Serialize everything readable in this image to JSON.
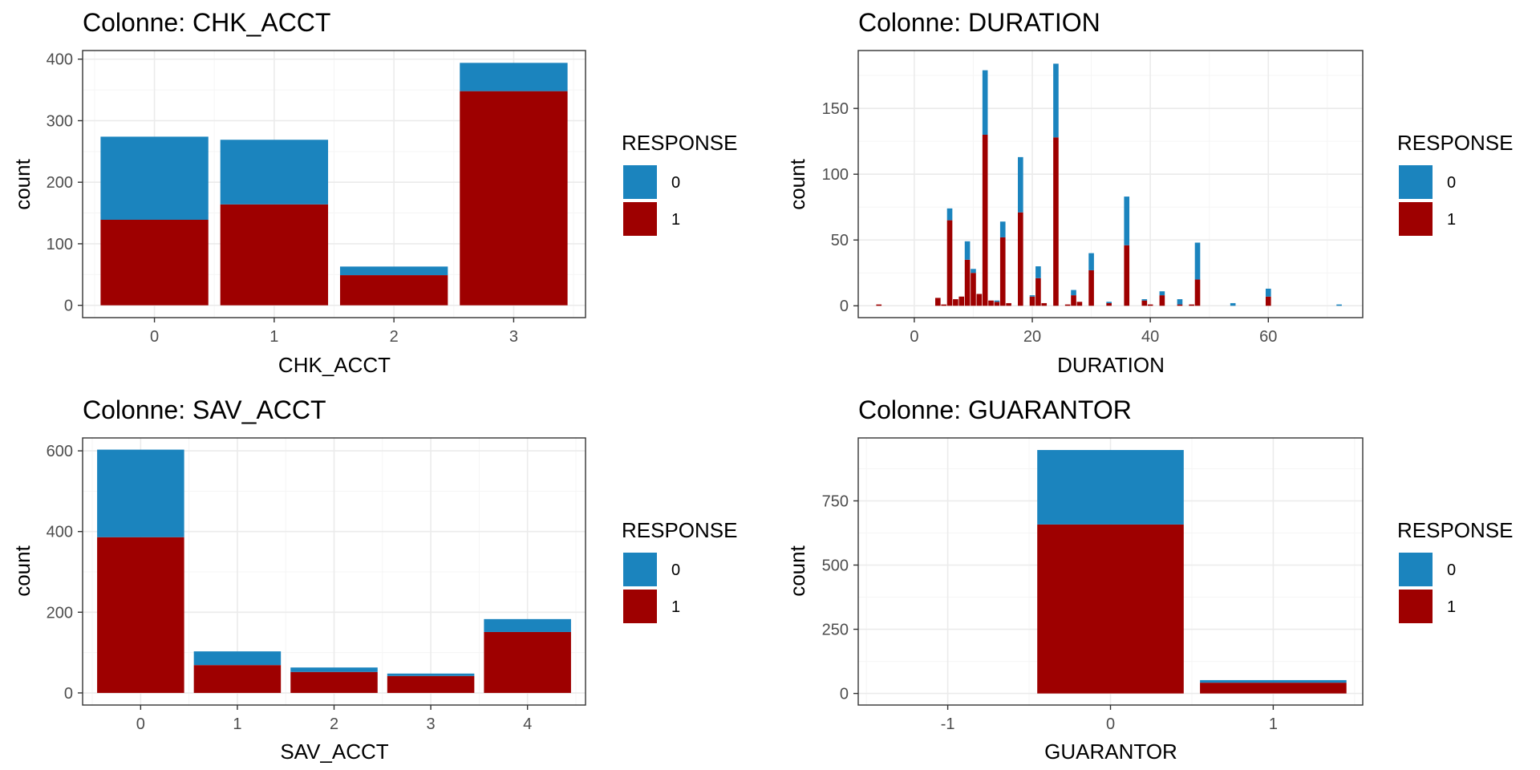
{
  "fill_colors": {
    "0": "#1b84be",
    "1": "#9e0000"
  },
  "legend": {
    "title": "RESPONSE",
    "labels": [
      "0",
      "1"
    ]
  },
  "chart_data": [
    {
      "type": "bar",
      "stacked": true,
      "title": "Colonne:  CHK_ACCT",
      "xlabel": "CHK_ACCT",
      "ylabel": "count",
      "categories": [
        0,
        1,
        2,
        3
      ],
      "x_ticks": [
        0,
        1,
        2,
        3
      ],
      "y_ticks": [
        0,
        100,
        200,
        300,
        400
      ],
      "xlim": [
        -0.6,
        3.6
      ],
      "ylim": [
        -20,
        414
      ],
      "bar_width": 0.9,
      "series": [
        {
          "name": "0",
          "values": [
            135,
            105,
            14,
            46
          ]
        },
        {
          "name": "1",
          "values": [
            139,
            164,
            49,
            348
          ]
        }
      ]
    },
    {
      "type": "bar",
      "stacked": true,
      "title": "Colonne:  DURATION",
      "xlabel": "DURATION",
      "ylabel": "count",
      "categories": [
        -6,
        4,
        5,
        6,
        7,
        8,
        9,
        10,
        11,
        12,
        13,
        14,
        15,
        16,
        18,
        20,
        21,
        22,
        24,
        26,
        27,
        28,
        30,
        33,
        36,
        39,
        40,
        42,
        45,
        47,
        48,
        54,
        60,
        72
      ],
      "x_ticks": [
        0,
        20,
        40,
        60
      ],
      "y_ticks": [
        0,
        50,
        100,
        150
      ],
      "xlim": [
        -9.5,
        76
      ],
      "ylim": [
        -9,
        194
      ],
      "bar_width": 0.9,
      "series": [
        {
          "name": "0",
          "values": [
            0,
            0,
            0,
            9,
            0,
            0,
            14,
            3,
            0,
            49,
            0,
            1,
            12,
            0,
            42,
            1,
            9,
            0,
            56,
            0,
            4,
            0,
            13,
            1,
            37,
            1,
            0,
            3,
            4,
            0,
            28,
            2,
            6,
            1
          ]
        },
        {
          "name": "1",
          "values": [
            1,
            6,
            1,
            65,
            5,
            7,
            35,
            25,
            9,
            130,
            4,
            3,
            52,
            2,
            71,
            7,
            21,
            2,
            128,
            1,
            8,
            3,
            27,
            2,
            46,
            4,
            1,
            8,
            1,
            1,
            20,
            0,
            7,
            0
          ]
        }
      ]
    },
    {
      "type": "bar",
      "stacked": true,
      "title": "Colonne:  SAV_ACCT",
      "xlabel": "SAV_ACCT",
      "ylabel": "count",
      "categories": [
        0,
        1,
        2,
        3,
        4
      ],
      "x_ticks": [
        0,
        1,
        2,
        3,
        4
      ],
      "y_ticks": [
        0,
        200,
        400,
        600
      ],
      "xlim": [
        -0.6,
        4.6
      ],
      "ylim": [
        -30,
        632
      ],
      "bar_width": 0.9,
      "series": [
        {
          "name": "0",
          "values": [
            217,
            34,
            11,
            6,
            32
          ]
        },
        {
          "name": "1",
          "values": [
            386,
            69,
            52,
            42,
            151
          ]
        }
      ]
    },
    {
      "type": "bar",
      "stacked": true,
      "title": "Colonne:  GUARANTOR",
      "xlabel": "GUARANTOR",
      "ylabel": "count",
      "categories": [
        0,
        1
      ],
      "x_ticks": [
        -1,
        0,
        1
      ],
      "y_ticks": [
        0,
        250,
        500,
        750
      ],
      "xlim": [
        -1.55,
        1.55
      ],
      "ylim": [
        -45,
        995
      ],
      "bar_width": 0.9,
      "series": [
        {
          "name": "0",
          "values": [
            290,
            10
          ]
        },
        {
          "name": "1",
          "values": [
            658,
            42
          ]
        }
      ]
    }
  ]
}
